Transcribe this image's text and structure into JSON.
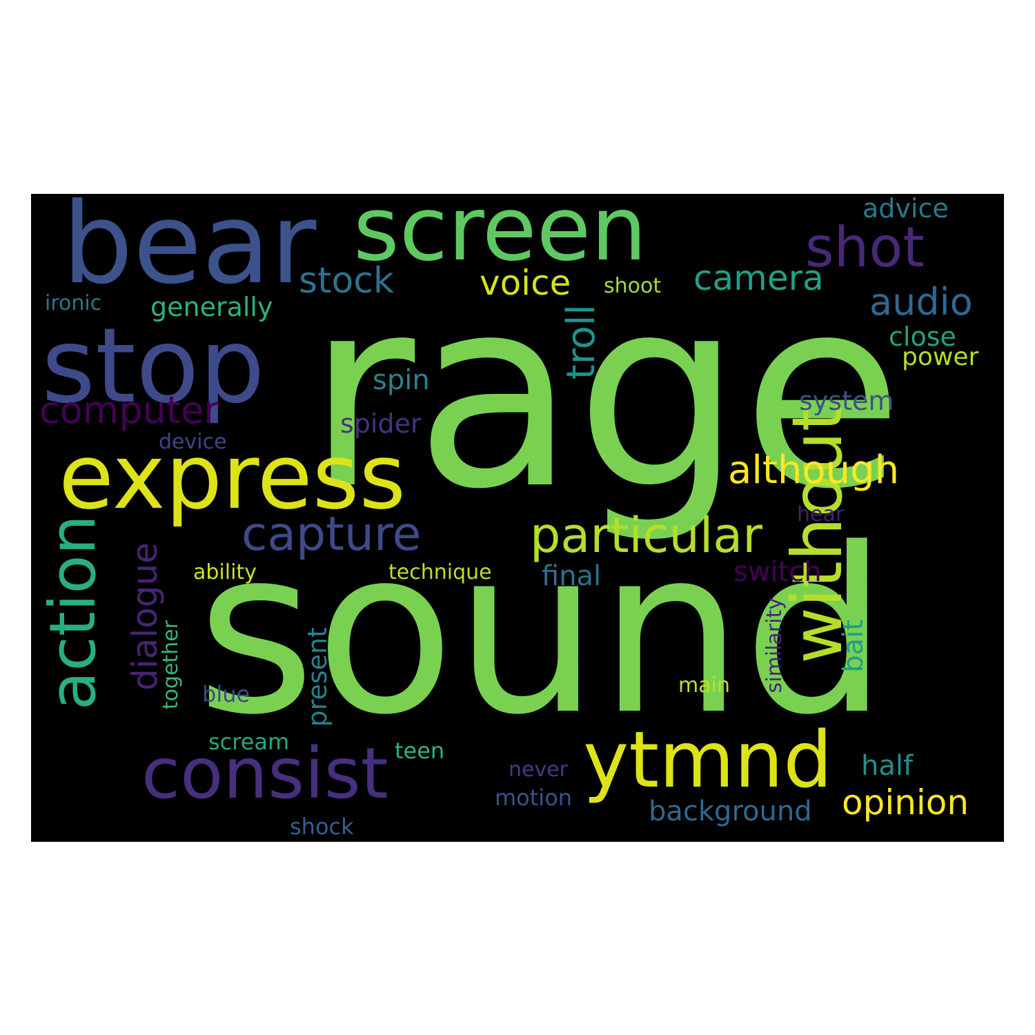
{
  "cloud": {
    "background": "#000000",
    "words": [
      {
        "text": "rage",
        "color": "#7ad151"
      },
      {
        "text": "sound",
        "color": "#7ad151"
      },
      {
        "text": "bear",
        "color": "#3b528b"
      },
      {
        "text": "screen",
        "color": "#5ec962"
      },
      {
        "text": "stop",
        "color": "#3e4a89"
      },
      {
        "text": "express",
        "color": "#dde318"
      },
      {
        "text": "consist",
        "color": "#472f7d"
      },
      {
        "text": "ytmnd",
        "color": "#dde318"
      },
      {
        "text": "without",
        "color": "#b5de2b"
      },
      {
        "text": "action",
        "color": "#29af7f"
      },
      {
        "text": "particular",
        "color": "#b5de2b"
      },
      {
        "text": "capture",
        "color": "#3e4a89"
      },
      {
        "text": "shot",
        "color": "#482878"
      },
      {
        "text": "although",
        "color": "#fde725"
      },
      {
        "text": "camera",
        "color": "#1fa187"
      },
      {
        "text": "voice",
        "color": "#d8e219"
      },
      {
        "text": "stock",
        "color": "#2c728e"
      },
      {
        "text": "audio",
        "color": "#31688e"
      },
      {
        "text": "computer",
        "color": "#440154"
      },
      {
        "text": "opinion",
        "color": "#fde725"
      },
      {
        "text": "troll",
        "color": "#20928c"
      },
      {
        "text": "dialogue",
        "color": "#482475"
      },
      {
        "text": "generally",
        "color": "#2db27d"
      },
      {
        "text": "advice",
        "color": "#2a788e"
      },
      {
        "text": "background",
        "color": "#31688e"
      },
      {
        "text": "switch",
        "color": "#440154"
      },
      {
        "text": "close",
        "color": "#20a386"
      },
      {
        "text": "power",
        "color": "#b5de2b"
      },
      {
        "text": "spin",
        "color": "#25848e"
      },
      {
        "text": "system",
        "color": "#3b528b"
      },
      {
        "text": "spider",
        "color": "#46327e"
      },
      {
        "text": "final",
        "color": "#2c728e"
      },
      {
        "text": "half",
        "color": "#21908d"
      },
      {
        "text": "present",
        "color": "#26828e"
      },
      {
        "text": "bait",
        "color": "#1f9e89"
      },
      {
        "text": "shoot",
        "color": "#a8db34"
      },
      {
        "text": "ironic",
        "color": "#2a788e"
      },
      {
        "text": "device",
        "color": "#414487"
      },
      {
        "text": "ability",
        "color": "#d0e11c"
      },
      {
        "text": "technique",
        "color": "#bddf26"
      },
      {
        "text": "together",
        "color": "#35b779"
      },
      {
        "text": "blue",
        "color": "#3e4989"
      },
      {
        "text": "main",
        "color": "#c0df25"
      },
      {
        "text": "similarity",
        "color": "#482475"
      },
      {
        "text": "scream",
        "color": "#22a884"
      },
      {
        "text": "teen",
        "color": "#2eb37c"
      },
      {
        "text": "hear",
        "color": "#481f70"
      },
      {
        "text": "never",
        "color": "#443a83"
      },
      {
        "text": "motion",
        "color": "#3b528b"
      },
      {
        "text": "shock",
        "color": "#355f8d"
      }
    ]
  }
}
